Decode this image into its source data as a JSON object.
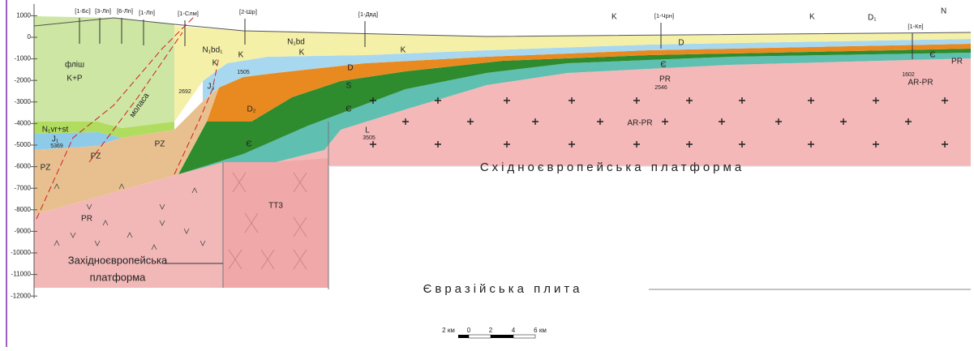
{
  "depth_axis": {
    "ticks": [
      1000,
      0,
      -1000,
      -2000,
      -3000,
      -4000,
      -5000,
      -6000,
      -7000,
      -8000,
      -9000,
      -10000,
      -11000,
      -12000
    ]
  },
  "wells": [
    "[1-Бс]",
    "[3-Лп]",
    "[6-Лп]",
    "[1-Лп]",
    "[1-Слм]",
    "[2-Шр]",
    "[1-Двд]",
    "[1-Чрн]",
    "[1-Кп]"
  ],
  "surface_labels": [
    "K",
    "K",
    "D₁",
    "N"
  ],
  "units": [
    "фліш",
    "K+P",
    "N₁vr+st",
    "N₁bd₁",
    "N₁bd",
    "K",
    "K",
    "K",
    "K",
    "J₃",
    "J₁",
    "2692",
    "5369",
    "PZ",
    "PZ",
    "PZ",
    "D₂",
    "D",
    "S",
    "Є",
    "L",
    "Є",
    "1505",
    "3505",
    "2546",
    "PR",
    "D",
    "Є",
    "1602",
    "AR-PR",
    "PR",
    "Є",
    "AR-PR",
    "PR",
    "TT3",
    "моласа"
  ],
  "regions": {
    "east_platform": "Східноєвропейська платформа",
    "west_platform": [
      "Західноєвропейська",
      "платформа"
    ],
    "plate": "Євразійська плита"
  },
  "scale_bar": {
    "labels": [
      "2 км",
      "0",
      "2",
      "4",
      "6 км"
    ]
  }
}
